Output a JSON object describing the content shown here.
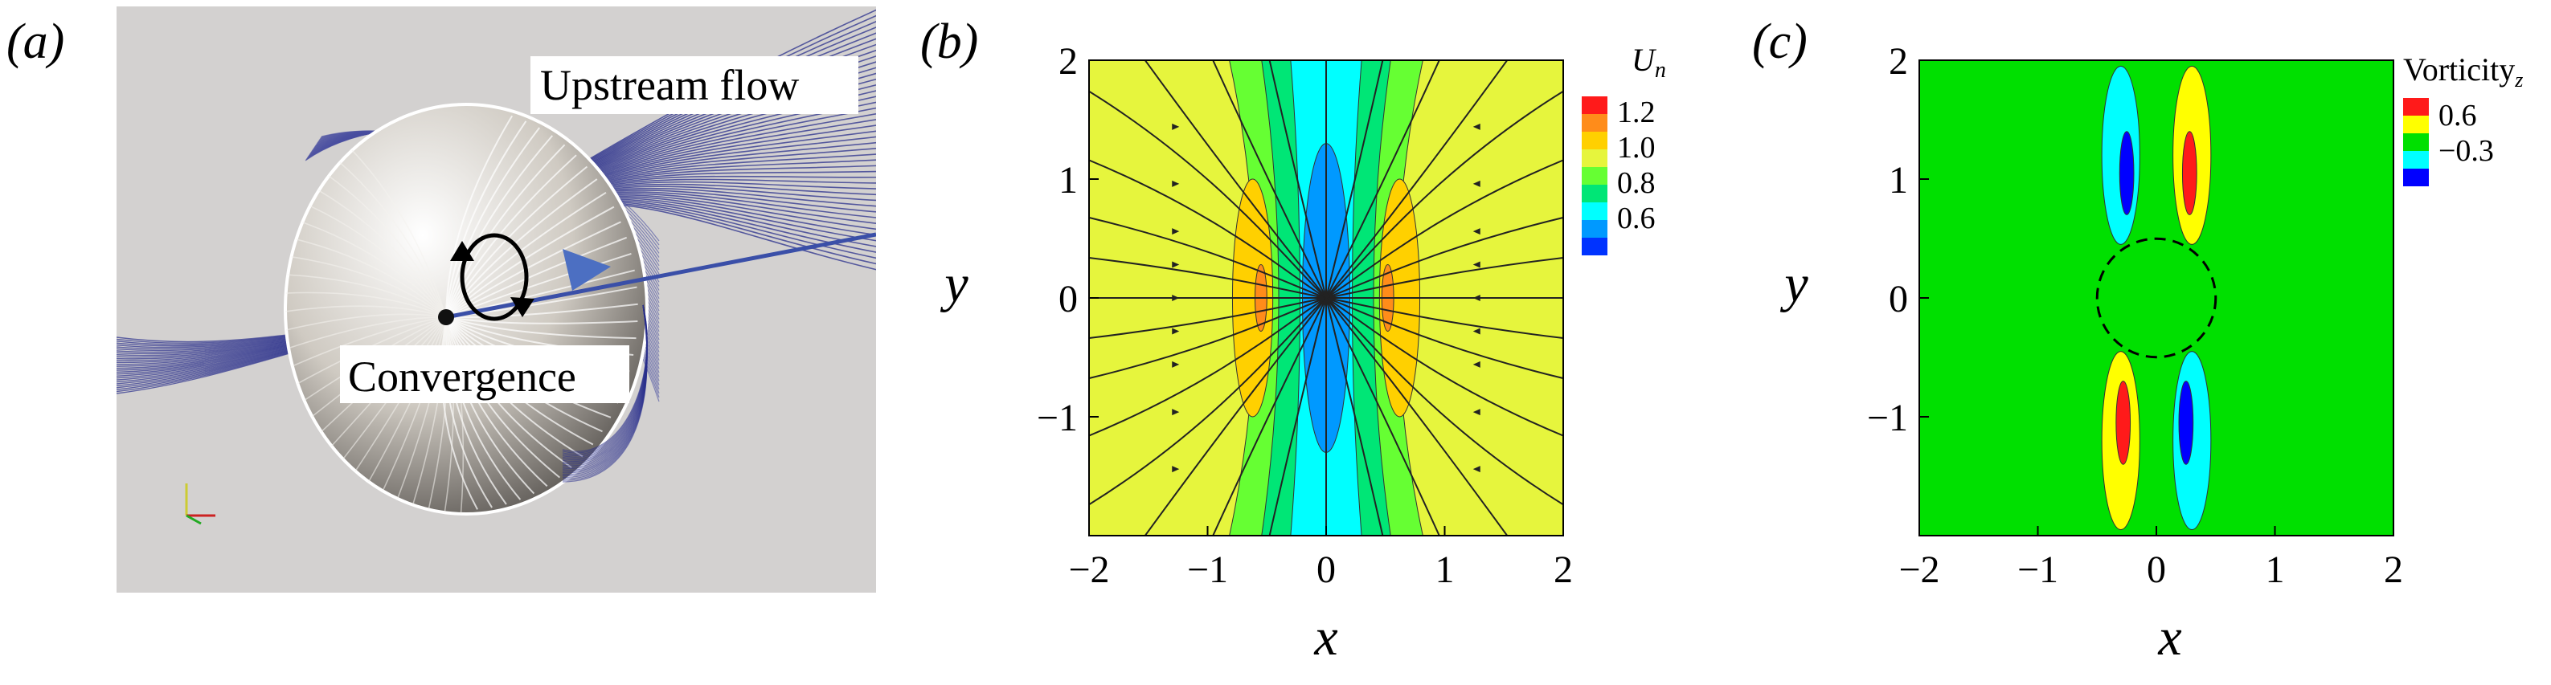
{
  "panels": {
    "a": {
      "label": "(a)",
      "annotations": {
        "upstream": "Upstream flow",
        "convergence": "Convergence"
      },
      "colors": {
        "background": "#d3d1d0",
        "streamline": "#2a2f8c",
        "sphere": "#e8e4de",
        "arrow": "#4c6fc2"
      }
    },
    "b": {
      "label": "(b)",
      "xlabel": "x",
      "ylabel": "y",
      "legend_title": "U",
      "legend_subscript": "n",
      "legend_labels": [
        "1.2",
        "1.0",
        "0.8",
        "0.6"
      ]
    },
    "c": {
      "label": "(c)",
      "xlabel": "x",
      "ylabel": "y",
      "legend_title": "Vorticity",
      "legend_subscript": "z",
      "legend_labels": [
        "0.6",
        "−0.3"
      ]
    }
  },
  "chart_data": [
    {
      "type": "heatmap",
      "panel": "b",
      "xlabel": "x",
      "ylabel": "y",
      "xlim": [
        -2,
        2
      ],
      "ylim": [
        -2,
        2
      ],
      "xticks": [
        "−2",
        "−1",
        "0",
        "1",
        "2"
      ],
      "yticks": [
        "−1",
        "0",
        "1",
        "2"
      ],
      "colorbar": {
        "title": "U_n",
        "levels": [
          0.5,
          0.6,
          0.7,
          0.8,
          0.9,
          1.0,
          1.1,
          1.2,
          1.3
        ],
        "colors": [
          "#0033ff",
          "#0099ff",
          "#00ffff",
          "#00e676",
          "#66ff33",
          "#e6f53d",
          "#ffd000",
          "#ff8c1a",
          "#ff1a1a"
        ],
        "tick_labels": [
          "1.2",
          "1.0",
          "0.8",
          "0.6"
        ]
      },
      "background_level": 1.05,
      "regions": [
        {
          "shape": "band",
          "xmin": -0.6,
          "xmax": 0.6,
          "value": 0.95
        },
        {
          "shape": "band",
          "xmin": -0.4,
          "xmax": 0.4,
          "value": 0.85
        },
        {
          "shape": "band",
          "xmin": -0.22,
          "xmax": 0.22,
          "value": 0.75
        },
        {
          "shape": "ellipse",
          "cx": 0,
          "cy": 0,
          "rx": 0.2,
          "ry": 1.3,
          "value": 0.65
        },
        {
          "shape": "ellipse",
          "cx": -0.62,
          "cy": 0,
          "rx": 0.17,
          "ry": 1.0,
          "value": 1.15
        },
        {
          "shape": "ellipse",
          "cx": 0.62,
          "cy": 0,
          "rx": 0.17,
          "ry": 1.0,
          "value": 1.15
        },
        {
          "shape": "ellipse",
          "cx": -0.55,
          "cy": 0,
          "rx": 0.05,
          "ry": 0.28,
          "value": 1.25
        },
        {
          "shape": "ellipse",
          "cx": 0.52,
          "cy": 0,
          "rx": 0.05,
          "ry": 0.28,
          "value": 1.25
        }
      ],
      "streamlines": "hyperbolic stagnation pattern converging to origin"
    },
    {
      "type": "heatmap",
      "panel": "c",
      "xlabel": "x",
      "ylabel": "y",
      "xlim": [
        -2,
        2
      ],
      "ylim": [
        -2,
        2
      ],
      "xticks": [
        "−2",
        "−1",
        "0",
        "1",
        "2"
      ],
      "yticks": [
        "−1",
        "0",
        "1",
        "2"
      ],
      "colorbar": {
        "title": "Vorticity_z",
        "levels": [
          0.6,
          0.3,
          0.0,
          -0.3,
          -0.6
        ],
        "colors": [
          "#ff1a1a",
          "#ffff00",
          "#00e000",
          "#00ffff",
          "#0000ff"
        ],
        "tick_labels": [
          "0.6",
          "−0.3"
        ]
      },
      "background_level": 0.0,
      "regions": [
        {
          "shape": "ellipse",
          "cx": -0.3,
          "cy": 1.2,
          "rx": 0.16,
          "ry": 0.75,
          "value": -0.35
        },
        {
          "shape": "ellipse",
          "cx": 0.3,
          "cy": 1.2,
          "rx": 0.16,
          "ry": 0.75,
          "value": 0.35
        },
        {
          "shape": "ellipse",
          "cx": -0.3,
          "cy": -1.2,
          "rx": 0.16,
          "ry": 0.75,
          "value": 0.35
        },
        {
          "shape": "ellipse",
          "cx": 0.3,
          "cy": -1.2,
          "rx": 0.16,
          "ry": 0.75,
          "value": -0.35
        },
        {
          "shape": "ellipse",
          "cx": -0.25,
          "cy": 1.05,
          "rx": 0.06,
          "ry": 0.35,
          "value": -0.7
        },
        {
          "shape": "ellipse",
          "cx": 0.28,
          "cy": 1.05,
          "rx": 0.06,
          "ry": 0.35,
          "value": 0.7
        },
        {
          "shape": "ellipse",
          "cx": -0.28,
          "cy": -1.05,
          "rx": 0.06,
          "ry": 0.35,
          "value": 0.7
        },
        {
          "shape": "ellipse",
          "cx": 0.25,
          "cy": -1.05,
          "rx": 0.06,
          "ry": 0.35,
          "value": -0.7
        }
      ],
      "dashed_circle": {
        "cx": 0,
        "cy": 0,
        "r": 0.5
      }
    }
  ]
}
